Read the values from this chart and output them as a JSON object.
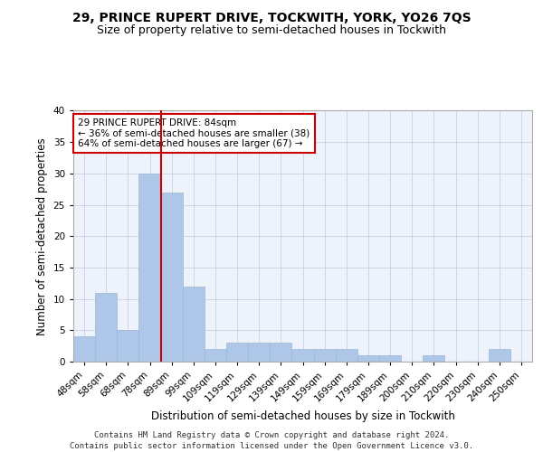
{
  "title": "29, PRINCE RUPERT DRIVE, TOCKWITH, YORK, YO26 7QS",
  "subtitle": "Size of property relative to semi-detached houses in Tockwith",
  "xlabel": "Distribution of semi-detached houses by size in Tockwith",
  "ylabel": "Number of semi-detached properties",
  "bar_labels": [
    "48sqm",
    "58sqm",
    "68sqm",
    "78sqm",
    "89sqm",
    "99sqm",
    "109sqm",
    "119sqm",
    "129sqm",
    "139sqm",
    "149sqm",
    "159sqm",
    "169sqm",
    "179sqm",
    "189sqm",
    "200sqm",
    "210sqm",
    "220sqm",
    "230sqm",
    "240sqm",
    "250sqm"
  ],
  "bar_values": [
    4,
    11,
    5,
    30,
    27,
    12,
    2,
    3,
    3,
    3,
    2,
    2,
    2,
    1,
    1,
    0,
    1,
    0,
    0,
    2,
    0
  ],
  "bar_color": "#aec6e8",
  "bar_edgecolor": "#9ab8d8",
  "grid_color": "#c8d0e0",
  "background_color": "#edf2fb",
  "vline_x_index": 4,
  "vline_color": "#cc0000",
  "annotation_text": "29 PRINCE RUPERT DRIVE: 84sqm\n← 36% of semi-detached houses are smaller (38)\n64% of semi-detached houses are larger (67) →",
  "annotation_box_facecolor": "#ffffff",
  "annotation_box_edgecolor": "#cc0000",
  "ylim": [
    0,
    40
  ],
  "yticks": [
    0,
    5,
    10,
    15,
    20,
    25,
    30,
    35,
    40
  ],
  "footer_text": "Contains HM Land Registry data © Crown copyright and database right 2024.\nContains public sector information licensed under the Open Government Licence v3.0.",
  "title_fontsize": 10,
  "subtitle_fontsize": 9,
  "xlabel_fontsize": 8.5,
  "ylabel_fontsize": 8.5,
  "tick_fontsize": 7.5,
  "annotation_fontsize": 7.5,
  "footer_fontsize": 6.5
}
